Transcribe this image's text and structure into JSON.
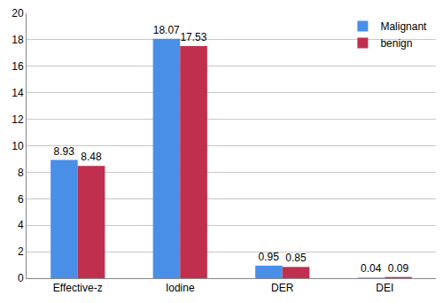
{
  "chart_data": {
    "type": "bar",
    "categories": [
      "Effective-z",
      "Iodine",
      "DER",
      "DEI"
    ],
    "series": [
      {
        "name": "Malignant",
        "color": "#4a8fe7",
        "values": [
          8.93,
          18.07,
          0.95,
          0.04
        ]
      },
      {
        "name": "benign",
        "color": "#c0304e",
        "values": [
          8.48,
          17.53,
          0.85,
          0.09
        ]
      }
    ],
    "ylim": [
      0,
      20
    ],
    "yticks": [
      0,
      2,
      4,
      6,
      8,
      10,
      12,
      14,
      16,
      18,
      20
    ],
    "grid": true,
    "legend": "top-right",
    "data_labels": true
  }
}
